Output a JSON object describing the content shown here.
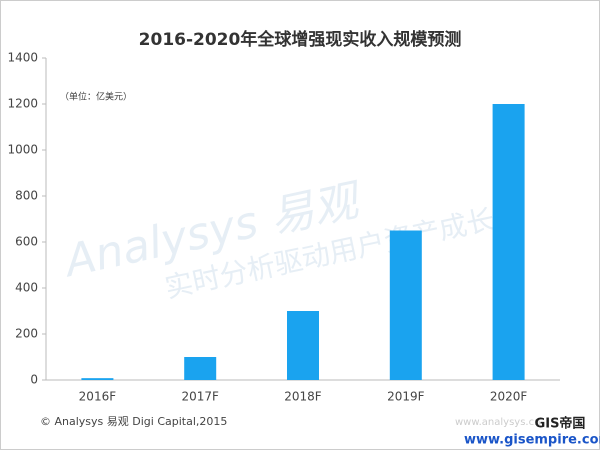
{
  "chart_data": {
    "type": "bar",
    "title": "2016-2020年全球增强现实收入规模预测",
    "unit_note": "（单位：亿美元）",
    "source": "© Analysys 易观 Digi Capital,2015",
    "watermark": "Analysys 易观",
    "watermark_slogan": "实时分析驱动用户资产成长",
    "site_note": "www.analysys.cn",
    "logo": "GIS帝国",
    "logo_url": "www.gisempire.com",
    "categories": [
      "2016F",
      "2017F",
      "2018F",
      "2019F",
      "2020F"
    ],
    "values": [
      8,
      100,
      300,
      650,
      1200
    ],
    "color": "#1aa3ef",
    "ylim": [
      0,
      1400
    ],
    "yticks": [
      0,
      200,
      400,
      600,
      800,
      1000,
      1200,
      1400
    ],
    "grid": false
  }
}
